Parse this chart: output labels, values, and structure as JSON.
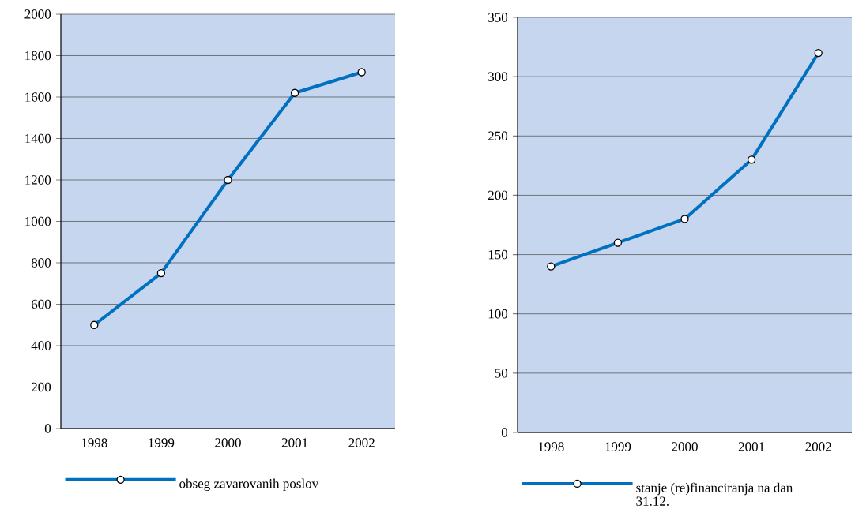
{
  "chart_data": [
    {
      "type": "line",
      "categories": [
        "1998",
        "1999",
        "2000",
        "2001",
        "2002"
      ],
      "series": [
        {
          "name": "obseg zavarovanih poslov",
          "color": "#0070c0",
          "values": [
            500,
            750,
            1200,
            1620,
            1720
          ]
        }
      ],
      "ylim": [
        0,
        2000
      ],
      "yticks": [
        0,
        200,
        400,
        600,
        800,
        1000,
        1200,
        1400,
        1600,
        1800,
        2000
      ],
      "grid": "y",
      "legend": "bottom",
      "marker": "circle"
    },
    {
      "type": "line",
      "categories": [
        "1998",
        "1999",
        "2000",
        "2001",
        "2002"
      ],
      "series": [
        {
          "name": "stanje (re)financiranja na dan 31.12.",
          "color": "#0070c0",
          "values": [
            140,
            160,
            180,
            230,
            320
          ]
        }
      ],
      "ylim": [
        0,
        350
      ],
      "yticks": [
        0,
        50,
        100,
        150,
        200,
        250,
        300,
        350
      ],
      "grid": "y",
      "legend": "bottom",
      "marker": "circle"
    }
  ]
}
